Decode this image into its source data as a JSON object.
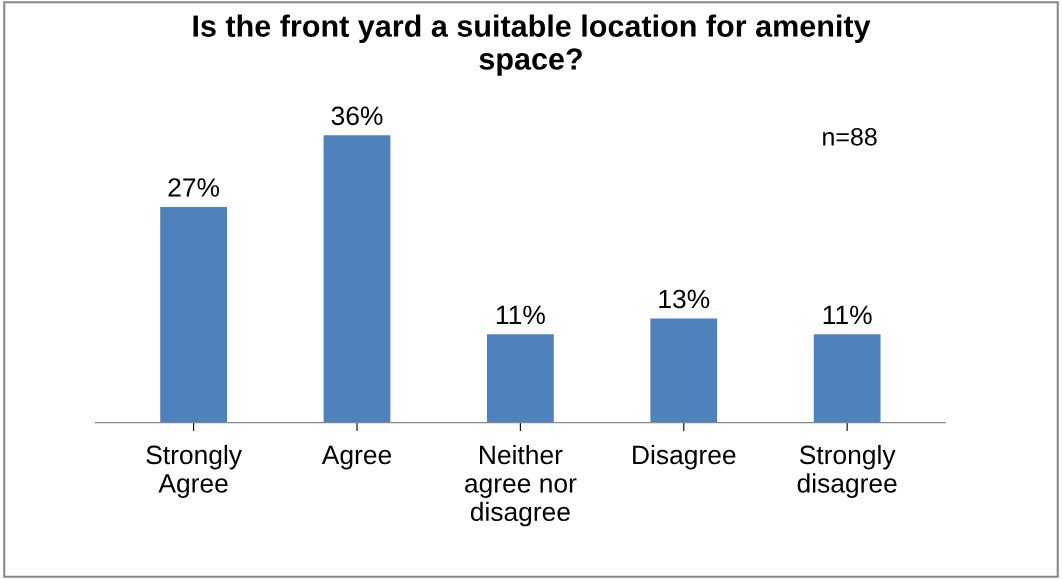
{
  "chart_data": {
    "type": "bar",
    "title": "Is the front yard a suitable location for amenity\nspace?",
    "categories": [
      "Strongly\nAgree",
      "Agree",
      "Neither\nagree nor\ndisagree",
      "Disagree",
      "Strongly\ndisagree"
    ],
    "values": [
      27,
      36,
      11,
      13,
      11
    ],
    "value_labels": [
      "27%",
      "36%",
      "11%",
      "13%",
      "11%"
    ],
    "color": "#4f81bd",
    "annotations": [
      "n=88"
    ],
    "grid": false,
    "legend": false
  }
}
